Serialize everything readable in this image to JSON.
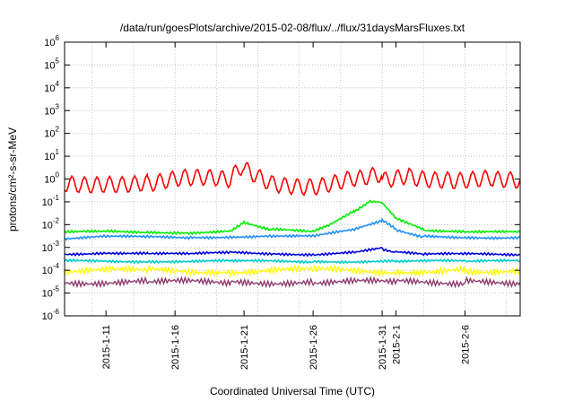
{
  "chart_data": {
    "type": "line",
    "title": "/data/run/goesPlots/archive/2015-02-08/flux/../flux/31daysMarsFluxes.txt",
    "xlabel": "Coordinated Universal Time (UTC)",
    "ylabel": "protons/cm²-s-sr-MeV",
    "y_scale": "log",
    "ylim": [
      1e-06,
      1000000.0
    ],
    "xlim": [
      "2015-01-08",
      "2015-02-10"
    ],
    "grid": true,
    "y_ticks": [
      {
        "base": "10",
        "exp": "-6"
      },
      {
        "base": "10",
        "exp": "-5"
      },
      {
        "base": "10",
        "exp": "-4"
      },
      {
        "base": "10",
        "exp": "-3"
      },
      {
        "base": "10",
        "exp": "-2"
      },
      {
        "base": "10",
        "exp": "-1"
      },
      {
        "base": "10",
        "exp": "0"
      },
      {
        "base": "10",
        "exp": "1"
      },
      {
        "base": "10",
        "exp": "2"
      },
      {
        "base": "10",
        "exp": "3"
      },
      {
        "base": "10",
        "exp": "4"
      },
      {
        "base": "10",
        "exp": "5"
      },
      {
        "base": "10",
        "exp": "6"
      }
    ],
    "x_ticks": [
      {
        "date": "2015-01-11",
        "label": "2015-1-11"
      },
      {
        "date": "2015-01-16",
        "label": "2015-1-16"
      },
      {
        "date": "2015-01-21",
        "label": "2015-1-21"
      },
      {
        "date": "2015-01-26",
        "label": "2015-1-26"
      },
      {
        "date": "2015-01-31",
        "label": "2015-1-31"
      },
      {
        "date": "2015-02-01",
        "label": "2015-2-1"
      },
      {
        "date": "2015-02-06",
        "label": "2015-2-6"
      }
    ],
    "series": [
      {
        "color": "#ff0000",
        "x": [
          "2015-01-08",
          "2015-01-11",
          "2015-01-14",
          "2015-01-17",
          "2015-01-20",
          "2015-01-21",
          "2015-01-23",
          "2015-01-26",
          "2015-01-29",
          "2015-01-31",
          "2015-02-02",
          "2015-02-05",
          "2015-02-08",
          "2015-02-10"
        ],
        "y": [
          0.6,
          0.8,
          0.7,
          0.9,
          0.8,
          4.0,
          0.7,
          0.6,
          1.0,
          1.2,
          1.5,
          1.1,
          0.9,
          0.6
        ]
      },
      {
        "color": "#00ee00",
        "x": [
          "2015-01-08",
          "2015-01-11",
          "2015-01-14",
          "2015-01-17",
          "2015-01-20",
          "2015-01-21",
          "2015-01-23",
          "2015-01-26",
          "2015-01-27",
          "2015-01-29",
          "2015-01-30",
          "2015-01-31",
          "2015-02-01",
          "2015-02-03",
          "2015-02-06",
          "2015-02-10"
        ],
        "y": [
          0.0045,
          0.005,
          0.0048,
          0.0045,
          0.005,
          0.012,
          0.006,
          0.005,
          0.009,
          0.04,
          0.1,
          0.09,
          0.02,
          0.006,
          0.005,
          0.0045
        ]
      },
      {
        "color": "#1f8fff",
        "x": [
          "2015-01-08",
          "2015-01-11",
          "2015-01-14",
          "2015-01-17",
          "2015-01-20",
          "2015-01-23",
          "2015-01-26",
          "2015-01-29",
          "2015-01-31",
          "2015-02-01",
          "2015-02-03",
          "2015-02-06",
          "2015-02-10"
        ],
        "y": [
          0.0025,
          0.003,
          0.0028,
          0.0027,
          0.003,
          0.0032,
          0.003,
          0.006,
          0.015,
          0.006,
          0.003,
          0.0028,
          0.0027
        ]
      },
      {
        "color": "#0000dd",
        "x": [
          "2015-01-08",
          "2015-01-11",
          "2015-01-14",
          "2015-01-17",
          "2015-01-20",
          "2015-01-23",
          "2015-01-26",
          "2015-01-29",
          "2015-01-31",
          "2015-02-01",
          "2015-02-03",
          "2015-02-06",
          "2015-02-10"
        ],
        "y": [
          0.0005,
          0.0006,
          0.00055,
          0.0005,
          0.0006,
          0.00055,
          0.0005,
          0.0006,
          0.0009,
          0.0006,
          0.0005,
          0.0005,
          0.0005
        ]
      },
      {
        "color": "#00cccc",
        "x": [
          "2015-01-08",
          "2015-01-14",
          "2015-01-20",
          "2015-01-26",
          "2015-02-01",
          "2015-02-06",
          "2015-02-10"
        ],
        "y": [
          0.00025,
          0.00025,
          0.00025,
          0.00024,
          0.00025,
          0.00025,
          0.00025
        ]
      },
      {
        "color": "#ffff00",
        "x": [
          "2015-01-08",
          "2015-01-14",
          "2015-01-20",
          "2015-01-26",
          "2015-02-01",
          "2015-02-06",
          "2015-02-10"
        ],
        "y": [
          9e-05,
          0.0001,
          9e-05,
          0.0001,
          9e-05,
          0.0001,
          9e-05
        ]
      },
      {
        "color": "#8e3a6e",
        "x": [
          "2015-01-08",
          "2015-01-14",
          "2015-01-20",
          "2015-01-26",
          "2015-02-01",
          "2015-02-06",
          "2015-02-10"
        ],
        "y": [
          3e-05,
          3e-05,
          3e-05,
          3e-05,
          3e-05,
          3e-05,
          3e-05
        ]
      }
    ]
  }
}
